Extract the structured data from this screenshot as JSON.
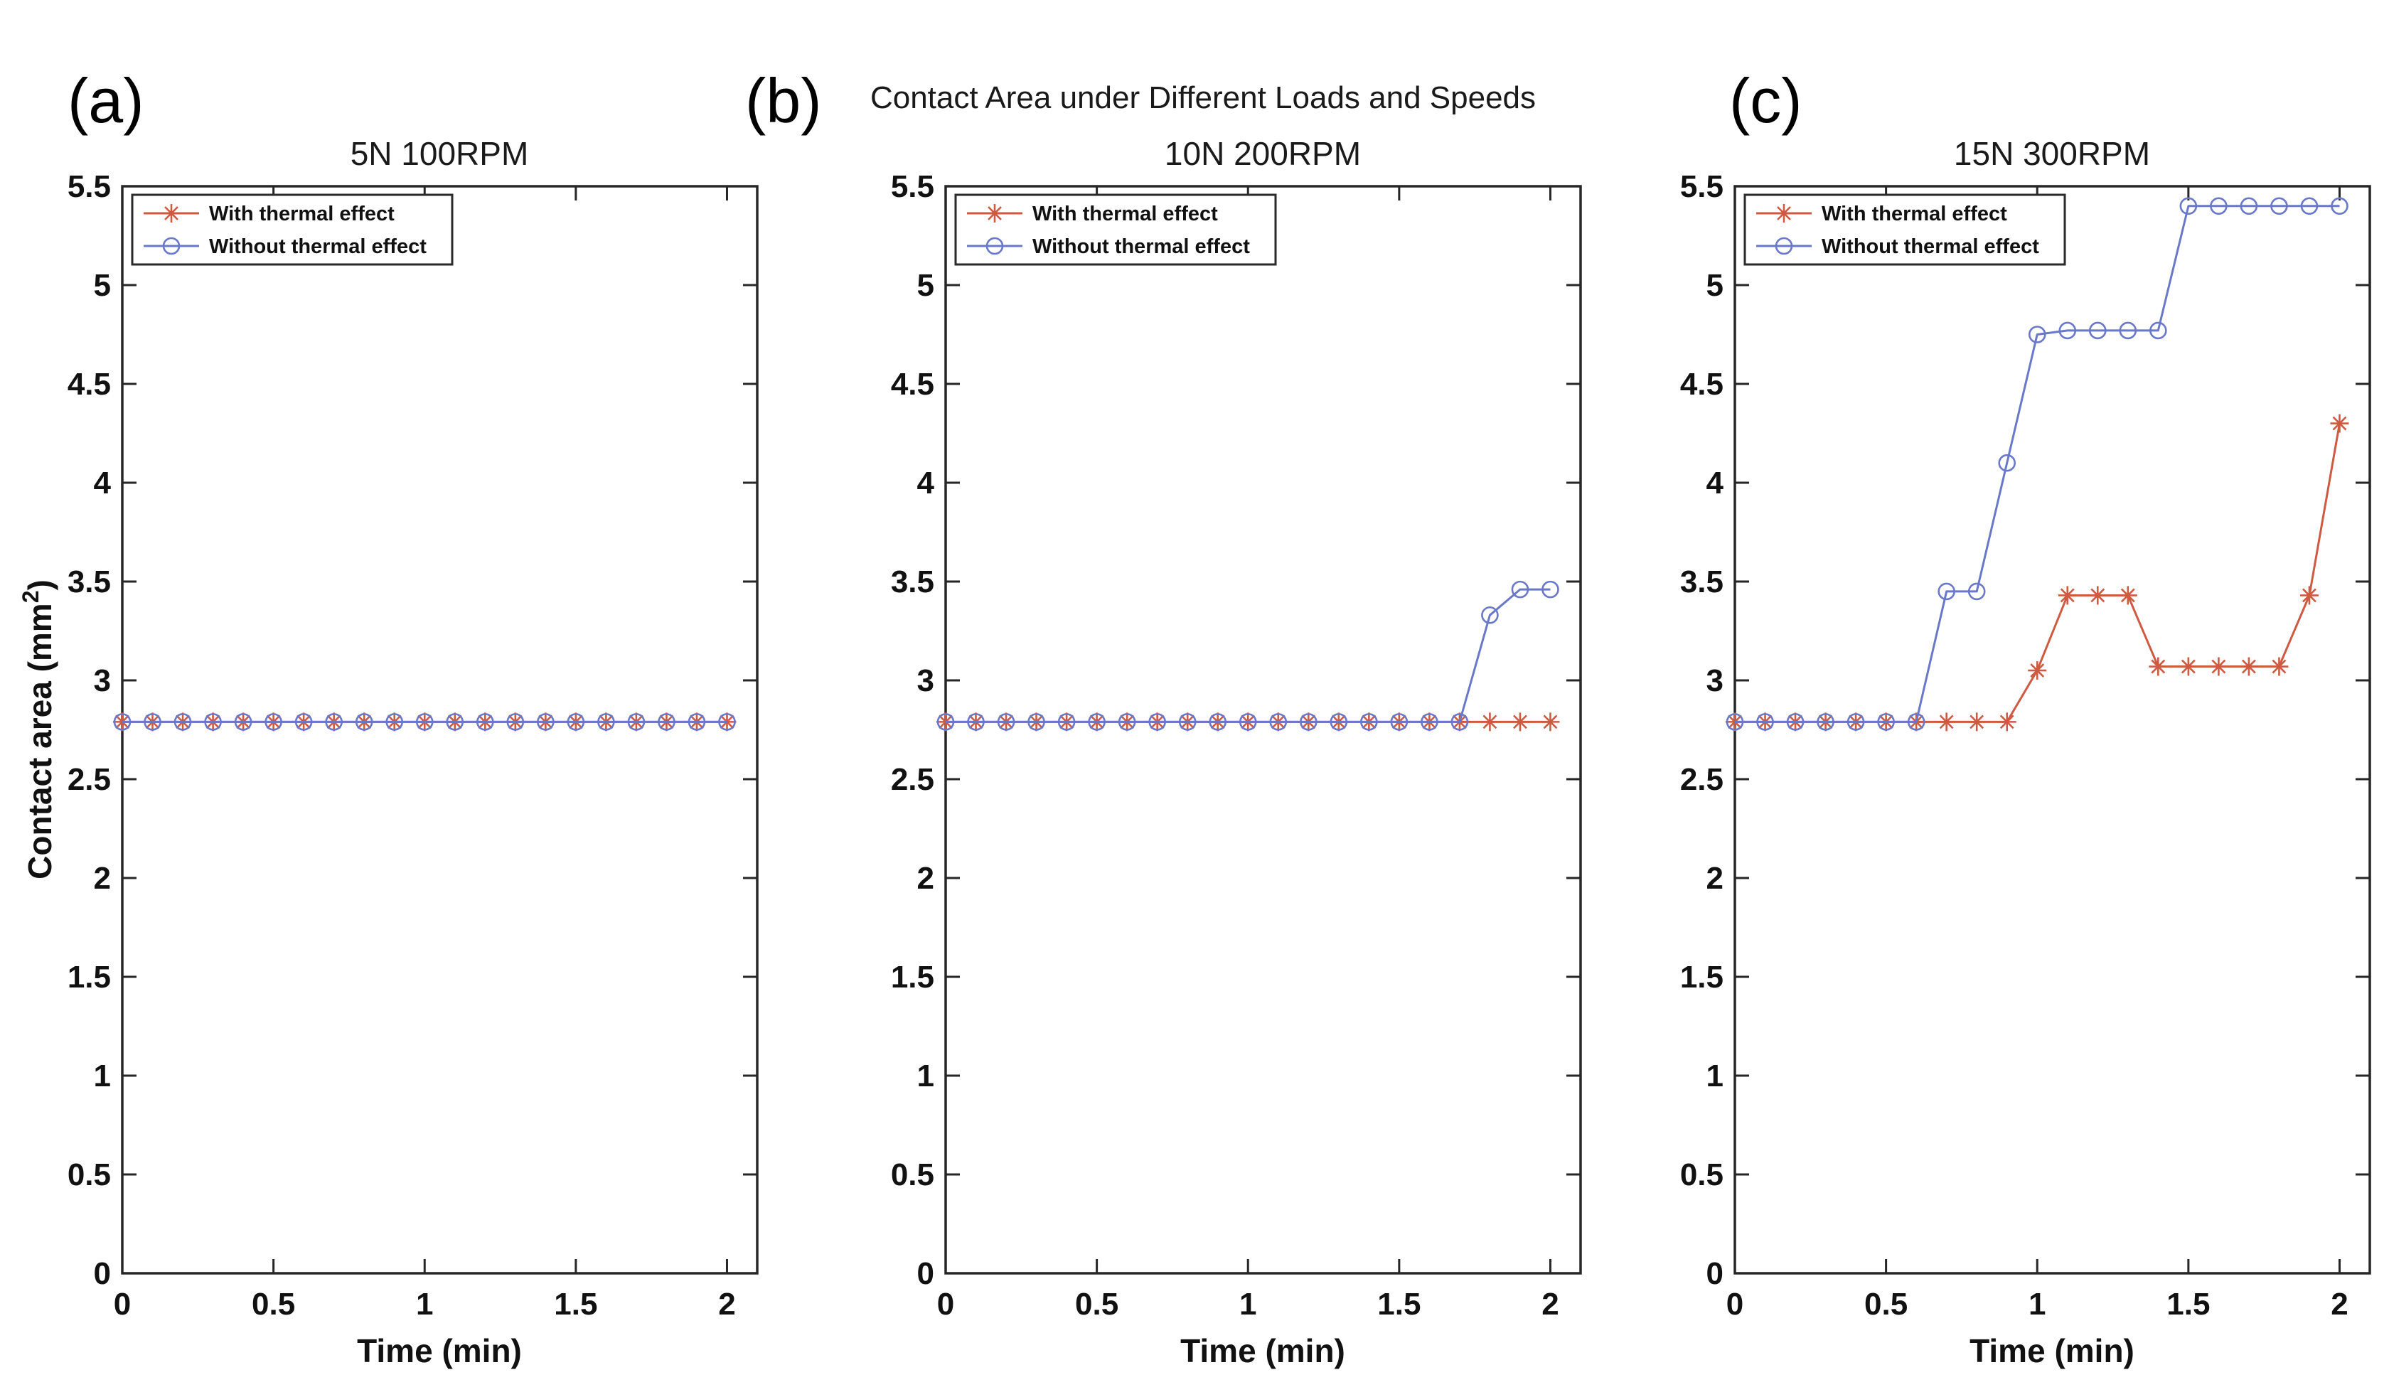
{
  "figure": {
    "suptitle": "Contact Area under Different Loads and Speeds",
    "background_color": "#ffffff",
    "axis_color": "#262626",
    "text_color": "#111111"
  },
  "axes": {
    "xlabel": "Time (min)",
    "ylabel_prefix": "Contact area (mm",
    "ylabel_sup": "2",
    "ylabel_suffix": ")",
    "xlim": [
      0,
      2.1
    ],
    "ylim": [
      0,
      5.5
    ],
    "xtick_labels": [
      "0",
      "0.5",
      "1",
      "1.5",
      "2"
    ],
    "xtick_values": [
      0,
      0.5,
      1,
      1.5,
      2
    ],
    "ytick_labels": [
      "0",
      "0.5",
      "1",
      "1.5",
      "2",
      "2.5",
      "3",
      "3.5",
      "4",
      "4.5",
      "5",
      "5.5"
    ],
    "ytick_values": [
      0,
      0.5,
      1,
      1.5,
      2,
      2.5,
      3,
      3.5,
      4,
      4.5,
      5,
      5.5
    ],
    "grid": false,
    "box": true
  },
  "legend": {
    "position": "upper-left",
    "entries": [
      {
        "label": "With thermal effect",
        "marker": "asterisk",
        "color": "#cd5a41"
      },
      {
        "label": "Without thermal effect",
        "marker": "circle",
        "color": "#6978c8"
      }
    ]
  },
  "chart_data": [
    {
      "type": "line",
      "panel_label": "(a)",
      "title": "5N 100RPM",
      "xlabel": "Time (min)",
      "x": [
        0,
        0.1,
        0.2,
        0.3,
        0.4,
        0.5,
        0.6,
        0.7,
        0.8,
        0.9,
        1.0,
        1.1,
        1.2,
        1.3,
        1.4,
        1.5,
        1.6,
        1.7,
        1.8,
        1.9,
        2.0
      ],
      "series": [
        {
          "name": "With thermal effect",
          "marker": "asterisk",
          "color": "#cd5a41",
          "values": [
            2.79,
            2.79,
            2.79,
            2.79,
            2.79,
            2.79,
            2.79,
            2.79,
            2.79,
            2.79,
            2.79,
            2.79,
            2.79,
            2.79,
            2.79,
            2.79,
            2.79,
            2.79,
            2.79,
            2.79,
            2.79
          ]
        },
        {
          "name": "Without thermal effect",
          "marker": "circle",
          "color": "#6978c8",
          "values": [
            2.79,
            2.79,
            2.79,
            2.79,
            2.79,
            2.79,
            2.79,
            2.79,
            2.79,
            2.79,
            2.79,
            2.79,
            2.79,
            2.79,
            2.79,
            2.79,
            2.79,
            2.79,
            2.79,
            2.79,
            2.79
          ]
        }
      ]
    },
    {
      "type": "line",
      "panel_label": "(b)",
      "title": "10N 200RPM",
      "xlabel": "Time (min)",
      "x": [
        0,
        0.1,
        0.2,
        0.3,
        0.4,
        0.5,
        0.6,
        0.7,
        0.8,
        0.9,
        1.0,
        1.1,
        1.2,
        1.3,
        1.4,
        1.5,
        1.6,
        1.7,
        1.8,
        1.9,
        2.0
      ],
      "series": [
        {
          "name": "With thermal effect",
          "marker": "asterisk",
          "color": "#cd5a41",
          "values": [
            2.79,
            2.79,
            2.79,
            2.79,
            2.79,
            2.79,
            2.79,
            2.79,
            2.79,
            2.79,
            2.79,
            2.79,
            2.79,
            2.79,
            2.79,
            2.79,
            2.79,
            2.79,
            2.79,
            2.79,
            2.79
          ]
        },
        {
          "name": "Without thermal effect",
          "marker": "circle",
          "color": "#6978c8",
          "values": [
            2.79,
            2.79,
            2.79,
            2.79,
            2.79,
            2.79,
            2.79,
            2.79,
            2.79,
            2.79,
            2.79,
            2.79,
            2.79,
            2.79,
            2.79,
            2.79,
            2.79,
            2.79,
            3.33,
            3.46,
            3.46
          ]
        }
      ]
    },
    {
      "type": "line",
      "panel_label": "(c)",
      "title": "15N 300RPM",
      "xlabel": "Time (min)",
      "x": [
        0,
        0.1,
        0.2,
        0.3,
        0.4,
        0.5,
        0.6,
        0.7,
        0.8,
        0.9,
        1.0,
        1.1,
        1.2,
        1.3,
        1.4,
        1.5,
        1.6,
        1.7,
        1.8,
        1.9,
        2.0
      ],
      "series": [
        {
          "name": "With thermal effect",
          "marker": "asterisk",
          "color": "#cd5a41",
          "values": [
            2.79,
            2.79,
            2.79,
            2.79,
            2.79,
            2.79,
            2.79,
            2.79,
            2.79,
            2.79,
            3.05,
            3.43,
            3.43,
            3.43,
            3.07,
            3.07,
            3.07,
            3.07,
            3.07,
            3.43,
            4.3
          ]
        },
        {
          "name": "Without thermal effect",
          "marker": "circle",
          "color": "#6978c8",
          "values": [
            2.79,
            2.79,
            2.79,
            2.79,
            2.79,
            2.79,
            2.79,
            3.45,
            3.45,
            4.1,
            4.75,
            4.77,
            4.77,
            4.77,
            4.77,
            5.4,
            5.4,
            5.4,
            5.4,
            5.4,
            5.4
          ]
        }
      ]
    }
  ]
}
